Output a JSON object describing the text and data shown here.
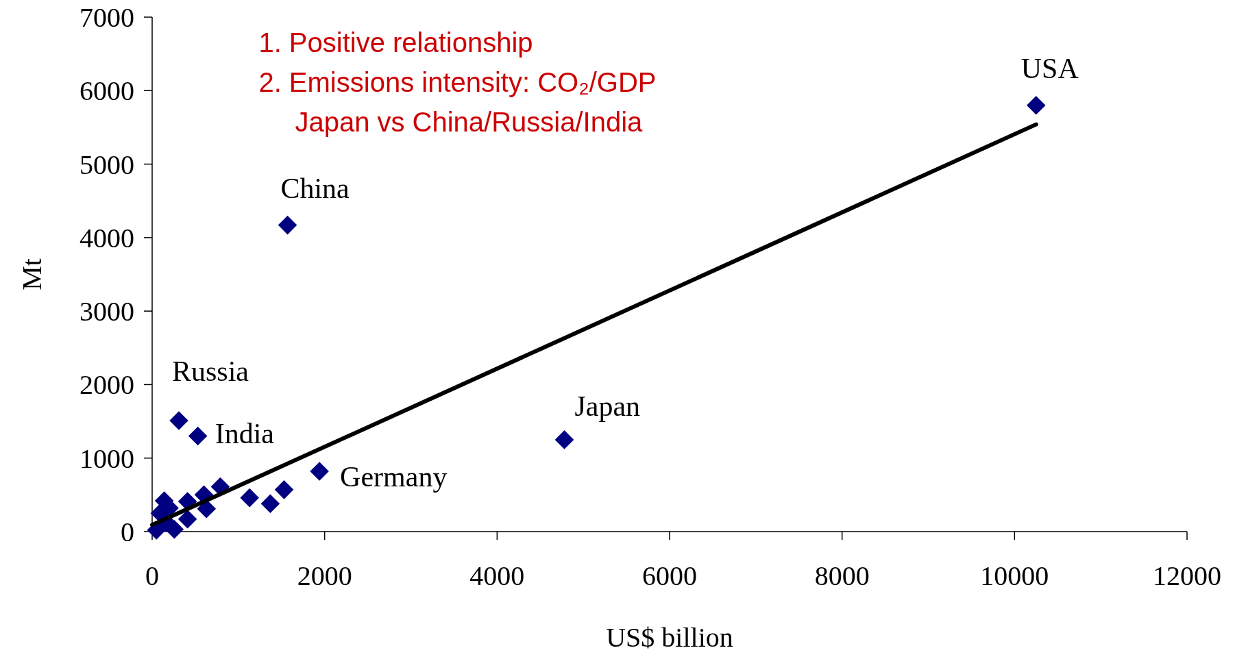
{
  "chart_data": {
    "type": "scatter",
    "xlabel": "US$ billion",
    "ylabel": "Mt",
    "xlim": [
      0,
      12000
    ],
    "xticks": [
      0,
      2000,
      4000,
      6000,
      8000,
      10000,
      12000
    ],
    "ylim": [
      0,
      7000
    ],
    "yticks": [
      0,
      1000,
      2000,
      3000,
      4000,
      5000,
      6000,
      7000
    ],
    "series": [
      {
        "type": "line",
        "color": "#000000",
        "x": [
          0,
          10250
        ],
        "values": [
          90,
          5540
        ]
      },
      {
        "color": "#000080",
        "marker": "diamond",
        "x": [
          10250,
          1570,
          310,
          530,
          4780,
          1940,
          1530,
          1370,
          1130,
          790,
          600,
          630,
          410,
          410,
          140,
          200,
          257,
          90,
          170,
          50
        ],
        "values": [
          5800,
          4170,
          1510,
          1300,
          1250,
          820,
          570,
          380,
          460,
          610,
          500,
          310,
          410,
          170,
          420,
          320,
          30,
          250,
          120,
          20
        ]
      }
    ],
    "annotations": [
      {
        "text": "USA",
        "x": 10250,
        "y": 5800
      },
      {
        "text": "China",
        "x": 1570,
        "y": 4170
      },
      {
        "text": "Russia",
        "x": 310,
        "y": 1510
      },
      {
        "text": "India",
        "x": 530,
        "y": 1300
      },
      {
        "text": "Japan",
        "x": 4780,
        "y": 1250
      },
      {
        "text": "Germany",
        "x": 1940,
        "y": 820
      },
      "1. Positive relationship",
      "2. Emissions intensity: CO₂/GDP",
      "Japan vs China/Russia/India"
    ]
  }
}
